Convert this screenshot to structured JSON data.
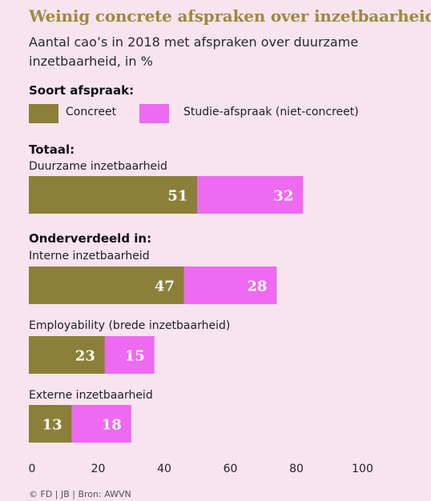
{
  "header": {
    "title": "Weinig concrete afspraken over inzetbaarheid",
    "subtitle": "Aantal cao’s in 2018 met afspraken over duurzame inzetbaarheid, in %"
  },
  "legend": {
    "heading": "Soort afspraak:",
    "items": [
      {
        "label": "Concreet",
        "color": "#8a8039"
      },
      {
        "label": "Studie-afspraak (niet-concreet)",
        "color": "#ee6af0"
      }
    ]
  },
  "sections": {
    "total_heading": "Totaal:",
    "breakdown_heading": "Onderverdeeld in:"
  },
  "footer": {
    "source": "© FD | JB | Bron: AWVN"
  },
  "chart_data": {
    "type": "bar",
    "orientation": "horizontal",
    "stacked": true,
    "categories": [
      "Duurzame inzetbaarheid",
      "Interne inzetbaarheid",
      "Employability (brede inzetbaarheid)",
      "Externe inzetbaarheid"
    ],
    "series": [
      {
        "name": "Concreet",
        "values": [
          51,
          47,
          23,
          13
        ],
        "color": "#8a8039"
      },
      {
        "name": "Studie-afspraak (niet-concreet)",
        "values": [
          32,
          28,
          15,
          18
        ],
        "color": "#ee6af0"
      }
    ],
    "xlim": [
      0,
      100
    ],
    "xticks": [
      0,
      20,
      40,
      60,
      80,
      100
    ],
    "grid": false,
    "legend_position": "top-left"
  }
}
